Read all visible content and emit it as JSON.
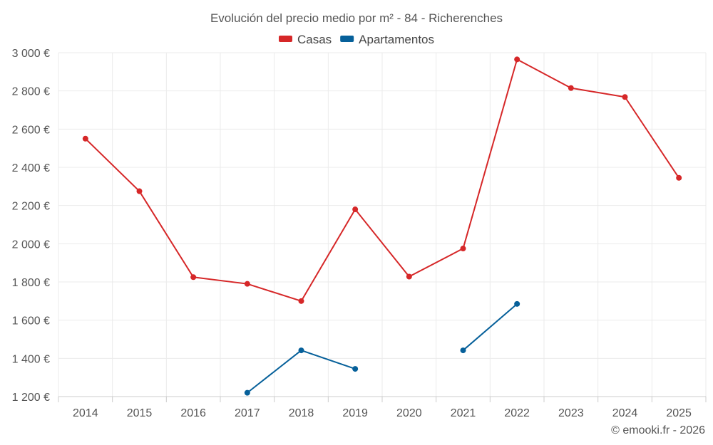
{
  "chart_data": {
    "type": "line",
    "title": "Evolución del precio medio por m² - 84 - Richerenches",
    "categories": [
      "2014",
      "2015",
      "2016",
      "2017",
      "2018",
      "2019",
      "2020",
      "2021",
      "2022",
      "2023",
      "2024",
      "2025"
    ],
    "series": [
      {
        "name": "Casas",
        "color": "#d62728",
        "values": [
          2550,
          2275,
          1825,
          1790,
          1700,
          2180,
          1828,
          1975,
          2965,
          2815,
          2768,
          2345
        ]
      },
      {
        "name": "Apartamentos",
        "color": "#06609a",
        "values": [
          null,
          null,
          null,
          1220,
          1442,
          1345,
          null,
          1442,
          1685,
          null,
          null,
          null
        ]
      }
    ],
    "ylim": [
      1200,
      3000
    ],
    "yticks": [
      1200,
      1400,
      1600,
      1800,
      2000,
      2200,
      2400,
      2600,
      2800,
      3000
    ],
    "ytick_labels": [
      "1 200 €",
      "1 400 €",
      "1 600 €",
      "1 800 €",
      "2 000 €",
      "2 200 €",
      "2 400 €",
      "2 600 €",
      "2 800 €",
      "3 000 €"
    ],
    "xlabel": "",
    "ylabel": "",
    "grid": true,
    "legend_position": "top-center"
  },
  "credit": "© emooki.fr - 2026"
}
